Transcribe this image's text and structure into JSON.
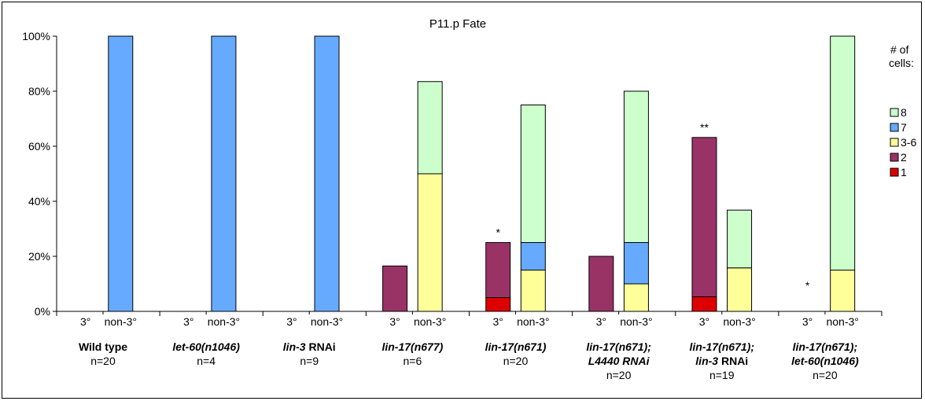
{
  "chart_data": {
    "type": "bar",
    "stacked": true,
    "title": "P11.p Fate",
    "y_ticks": [
      "0%",
      "20%",
      "40%",
      "60%",
      "80%",
      "100%"
    ],
    "ylim": [
      0,
      100
    ],
    "grid": false,
    "legend": {
      "title_line1": "# of",
      "title_line2": "cells:",
      "position": "right",
      "entries": [
        {
          "label": "8",
          "color": "#ccffcc"
        },
        {
          "label": "7",
          "color": "#66aaff"
        },
        {
          "label": "3-6",
          "color": "#ffff99"
        },
        {
          "label": "2",
          "color": "#993366"
        },
        {
          "label": "1",
          "color": "#dd0000"
        }
      ]
    },
    "series_order_bottom_to_top": [
      "1",
      "2",
      "3-6",
      "7",
      "8"
    ],
    "groups": [
      {
        "name": "Wild type",
        "name_italic": false,
        "name2": "",
        "n": "n=20",
        "bars": [
          {
            "label": "3°",
            "stack": {},
            "mark": ""
          },
          {
            "label": "non-3°",
            "stack": {
              "7": 100
            },
            "mark": ""
          }
        ]
      },
      {
        "name": "let-60(n1046)",
        "name_italic": true,
        "name2": "",
        "n": "n=4",
        "bars": [
          {
            "label": "3°",
            "stack": {},
            "mark": ""
          },
          {
            "label": "non-3°",
            "stack": {
              "7": 100
            },
            "mark": ""
          }
        ]
      },
      {
        "name": "lin-3 RNAi",
        "name_italic": "partial",
        "name2": "",
        "n": "n=9",
        "bars": [
          {
            "label": "3°",
            "stack": {},
            "mark": ""
          },
          {
            "label": "non-3°",
            "stack": {
              "7": 100
            },
            "mark": ""
          }
        ]
      },
      {
        "name": "lin-17(n677)",
        "name_italic": true,
        "name2": "",
        "n": "n=6",
        "bars": [
          {
            "label": "3°",
            "stack": {
              "2": 16.5
            },
            "mark": ""
          },
          {
            "label": "non-3°",
            "stack": {
              "3-6": 50,
              "8": 33.5
            },
            "mark": ""
          }
        ]
      },
      {
        "name": "lin-17(n671)",
        "name_italic": true,
        "name2": "",
        "n": "n=20",
        "bars": [
          {
            "label": "3°",
            "stack": {
              "1": 5,
              "2": 20
            },
            "mark": "*"
          },
          {
            "label": "non-3°",
            "stack": {
              "3-6": 15,
              "7": 10,
              "8": 50
            },
            "mark": ""
          }
        ]
      },
      {
        "name": "lin-17(n671);",
        "name_italic": true,
        "name2": "L4440 RNAi",
        "n": "n=20",
        "bars": [
          {
            "label": "3°",
            "stack": {
              "2": 20
            },
            "mark": ""
          },
          {
            "label": "non-3°",
            "stack": {
              "3-6": 10,
              "7": 15,
              "8": 55
            },
            "mark": ""
          }
        ]
      },
      {
        "name": "lin-17(n671);",
        "name_italic": true,
        "name2": "lin-3 RNAi",
        "n": "n=19",
        "bars": [
          {
            "label": "3°",
            "stack": {
              "1": 5.3,
              "2": 57.9
            },
            "mark": "**"
          },
          {
            "label": "non-3°",
            "stack": {
              "3-6": 15.8,
              "8": 21
            },
            "mark": ""
          }
        ]
      },
      {
        "name": "lin-17(n671);",
        "name_italic": true,
        "name2": "let-60(n1046)",
        "n": "n=20",
        "bars": [
          {
            "label": "3°",
            "stack": {},
            "mark": "*"
          },
          {
            "label": "non-3°",
            "stack": {
              "3-6": 15,
              "8": 85
            },
            "mark": ""
          }
        ]
      }
    ]
  }
}
